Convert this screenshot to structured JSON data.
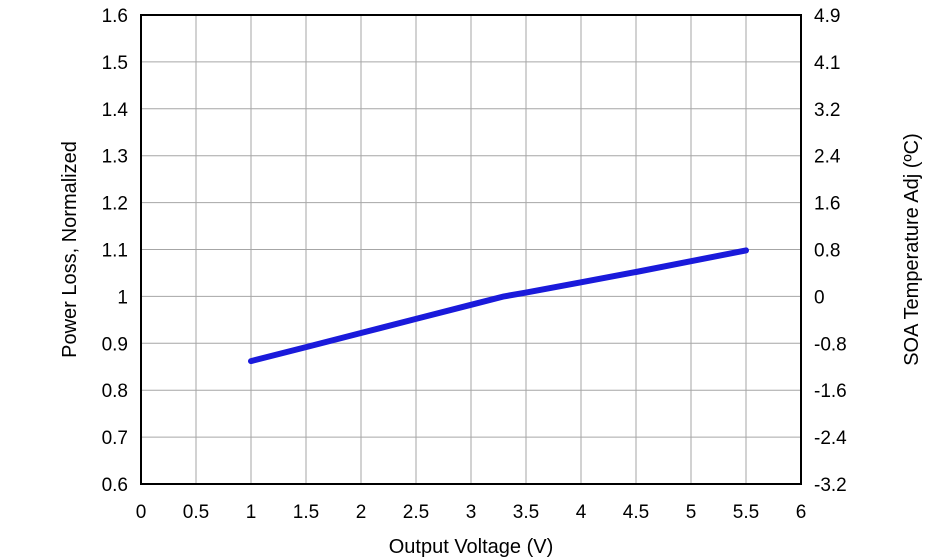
{
  "chart_data": {
    "type": "line",
    "title": "",
    "xlabel": "Output Voltage (V)",
    "ylabel": "Power Loss, Normalized",
    "y2label": "SOA Temperature Adj (ºC)",
    "xlim": [
      0,
      6
    ],
    "ylim": [
      0.6,
      1.6
    ],
    "x_ticks": [
      "0",
      "0.5",
      "1",
      "1.5",
      "2",
      "2.5",
      "3",
      "3.5",
      "4",
      "4.5",
      "5",
      "5.5",
      "6"
    ],
    "y_ticks": [
      "0.6",
      "0.7",
      "0.8",
      "0.9",
      "1",
      "1.1",
      "1.2",
      "1.3",
      "1.4",
      "1.5",
      "1.6"
    ],
    "y2_ticks": [
      "-3.2",
      "-2.4",
      "-1.6",
      "-0.8",
      "0",
      "0.8",
      "1.6",
      "2.4",
      "3.2",
      "4.1",
      "4.9"
    ],
    "grid": true,
    "series_color": "#1a1adb",
    "series": [
      {
        "x": [
          1,
          1.5,
          2,
          2.5,
          3,
          3.3,
          3.5,
          4,
          4.5,
          5,
          5.5
        ],
        "values": [
          0.862,
          0.892,
          0.922,
          0.952,
          0.982,
          1.0,
          1.008,
          1.03,
          1.052,
          1.075,
          1.098
        ]
      }
    ]
  }
}
